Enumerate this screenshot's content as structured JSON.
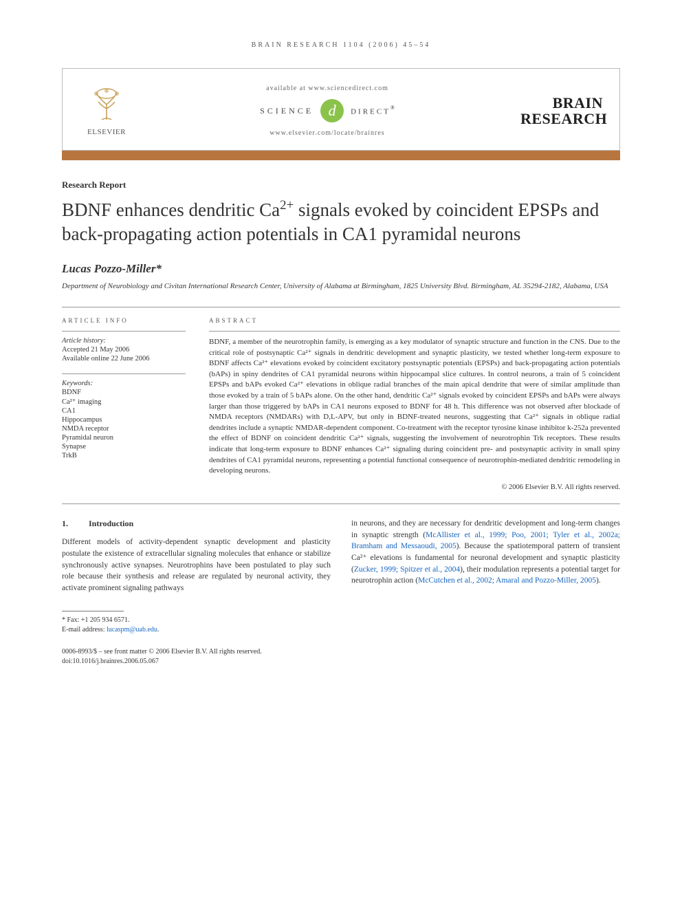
{
  "running_head": "BRAIN RESEARCH 1104 (2006) 45–54",
  "header": {
    "elsevier_label": "ELSEVIER",
    "available_line": "available at www.sciencedirect.com",
    "science_left": "SCIENCE",
    "sd_badge_glyph": "d",
    "direct_right": "DIRECT",
    "reg_mark": "®",
    "locate_line": "www.elsevier.com/locate/brainres",
    "journal_line1": "BRAIN",
    "journal_line2": "RESEARCH"
  },
  "colors": {
    "bar": "#b8763f",
    "sd_badge": "#8bc34a",
    "link": "#1565c0"
  },
  "report_type": "Research Report",
  "title_parts": {
    "p1": "BDNF enhances dendritic Ca",
    "p1_sup": "2+",
    "p2": " signals evoked by coincident EPSPs and back-propagating action potentials in CA1 pyramidal neurons"
  },
  "author": "Lucas Pozzo-Miller",
  "author_marker": "*",
  "affiliation": "Department of Neurobiology and Civitan International Research Center, University of Alabama at Birmingham, 1825 University Blvd. Birmingham, AL 35294-2182, Alabama, USA",
  "article_info": {
    "head": "ARTICLE INFO",
    "history_head": "Article history:",
    "accepted": "Accepted 21 May 2006",
    "online": "Available online 22 June 2006",
    "keywords_head": "Keywords:",
    "keywords": [
      "BDNF",
      "Ca²⁺ imaging",
      "CA1",
      "Hippocampus",
      "NMDA receptor",
      "Pyramidal neuron",
      "Synapse",
      "TrkB"
    ]
  },
  "abstract": {
    "head": "ABSTRACT",
    "text": "BDNF, a member of the neurotrophin family, is emerging as a key modulator of synaptic structure and function in the CNS. Due to the critical role of postsynaptic Ca²⁺ signals in dendritic development and synaptic plasticity, we tested whether long-term exposure to BDNF affects Ca²⁺ elevations evoked by coincident excitatory postsynaptic potentials (EPSPs) and back-propagating action potentials (bAPs) in spiny dendrites of CA1 pyramidal neurons within hippocampal slice cultures. In control neurons, a train of 5 coincident EPSPs and bAPs evoked Ca²⁺ elevations in oblique radial branches of the main apical dendrite that were of similar amplitude than those evoked by a train of 5 bAPs alone. On the other hand, dendritic Ca²⁺ signals evoked by coincident EPSPs and bAPs were always larger than those triggered by bAPs in CA1 neurons exposed to BDNF for 48 h. This difference was not observed after blockade of NMDA receptors (NMDARs) with D,L-APV, but only in BDNF-treated neurons, suggesting that Ca²⁺ signals in oblique radial dendrites include a synaptic NMDAR-dependent component. Co-treatment with the receptor tyrosine kinase inhibitor k-252a prevented the effect of BDNF on coincident dendritic Ca²⁺ signals, suggesting the involvement of neurotrophin Trk receptors. These results indicate that long-term exposure to BDNF enhances Ca²⁺ signaling during coincident pre- and postsynaptic activity in small spiny dendrites of CA1 pyramidal neurons, representing a potential functional consequence of neurotrophin-mediated dendritic remodeling in developing neurons.",
    "copyright": "© 2006 Elsevier B.V. All rights reserved."
  },
  "section1": {
    "num": "1.",
    "title": "Introduction"
  },
  "body": {
    "col1": "Different models of activity-dependent synaptic development and plasticity postulate the existence of extracellular signaling molecules that enhance or stabilize synchronously active synapses. Neurotrophins have been postulated to play such role because their synthesis and release are regulated by neuronal activity, they activate prominent signaling pathways",
    "col2_a": "in neurons, and they are necessary for dendritic development and long-term changes in synaptic strength (",
    "col2_ref1": "McAllister et al., 1999; Poo, 2001; Tyler et al., 2002a; Bramham and Messaoudi, 2005",
    "col2_b": "). Because the spatiotemporal pattern of transient Ca²⁺ elevations is fundamental for neuronal development and synaptic plasticity (",
    "col2_ref2": "Zucker, 1999; Spitzer et al., 2004",
    "col2_c": "), their modulation represents a potential target for neurotrophin action (",
    "col2_ref3": "McCutchen et al., 2002; Amaral and Pozzo-Miller, 2005",
    "col2_d": ")."
  },
  "footnotes": {
    "fax_label": "* Fax: +1 205 934 6571.",
    "email_label": "E-mail address: ",
    "email": "lucaspm@uab.edu",
    "email_tail": "."
  },
  "bottom": {
    "line1": "0006-8993/$ – see front matter © 2006 Elsevier B.V. All rights reserved.",
    "line2": "doi:10.1016/j.brainres.2006.05.067"
  }
}
